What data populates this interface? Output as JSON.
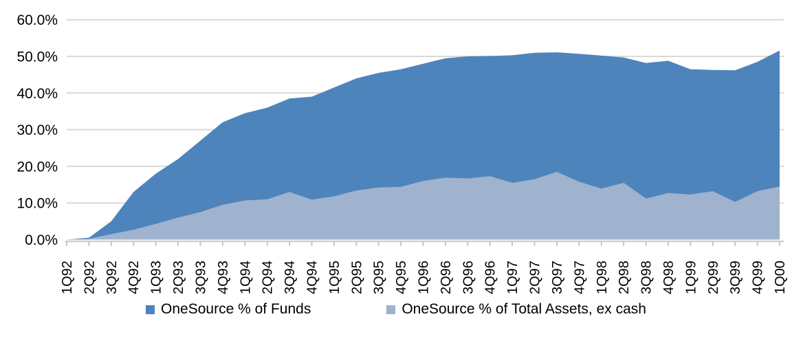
{
  "chart_data": {
    "type": "area",
    "stacked": false,
    "title": "",
    "xlabel": "",
    "ylabel": "",
    "ylim": [
      0,
      60
    ],
    "ytick_step": 10,
    "ytick_labels": [
      "0.0%",
      "10.0%",
      "20.0%",
      "30.0%",
      "40.0%",
      "50.0%",
      "60.0%"
    ],
    "grid": true,
    "legend_position": "bottom",
    "categories": [
      "1Q92",
      "2Q92",
      "3Q92",
      "4Q92",
      "1Q93",
      "2Q93",
      "3Q93",
      "4Q93",
      "1Q94",
      "2Q94",
      "3Q94",
      "4Q94",
      "1Q95",
      "2Q95",
      "3Q95",
      "4Q95",
      "1Q96",
      "2Q96",
      "3Q96",
      "4Q96",
      "1Q97",
      "2Q97",
      "3Q97",
      "4Q97",
      "1Q98",
      "2Q98",
      "3Q98",
      "4Q98",
      "1Q99",
      "2Q99",
      "3Q99",
      "4Q99",
      "1Q00"
    ],
    "series": [
      {
        "name": "OneSource % of Funds",
        "color": "#4e84bc",
        "values": [
          0,
          0.5,
          5.0,
          13.0,
          18.0,
          22.0,
          27.0,
          32.0,
          34.5,
          36.0,
          38.5,
          39.0,
          41.5,
          44.0,
          45.5,
          46.5,
          48.0,
          49.5,
          50.0,
          50.1,
          50.3,
          51.0,
          51.1,
          50.7,
          50.2,
          49.7,
          48.2,
          48.8,
          46.5,
          46.3,
          46.2,
          48.5,
          51.6
        ]
      },
      {
        "name": "OneSource % of Total Assets, ex cash",
        "color": "#9fb2ce",
        "values": [
          0,
          0.2,
          1.5,
          2.7,
          4.3,
          6.0,
          7.5,
          9.5,
          10.7,
          11.0,
          13.0,
          10.9,
          11.8,
          13.4,
          14.2,
          14.4,
          16.0,
          16.9,
          16.7,
          17.3,
          15.5,
          16.5,
          18.5,
          15.8,
          13.9,
          15.5,
          11.2,
          12.7,
          12.3,
          13.2,
          10.3,
          13.2,
          14.5
        ]
      }
    ],
    "colors": {
      "gridline": "#d9d9d9",
      "axis_line": "#d0d0d0",
      "tick": "#c6c6c6",
      "text": "#000000"
    }
  }
}
